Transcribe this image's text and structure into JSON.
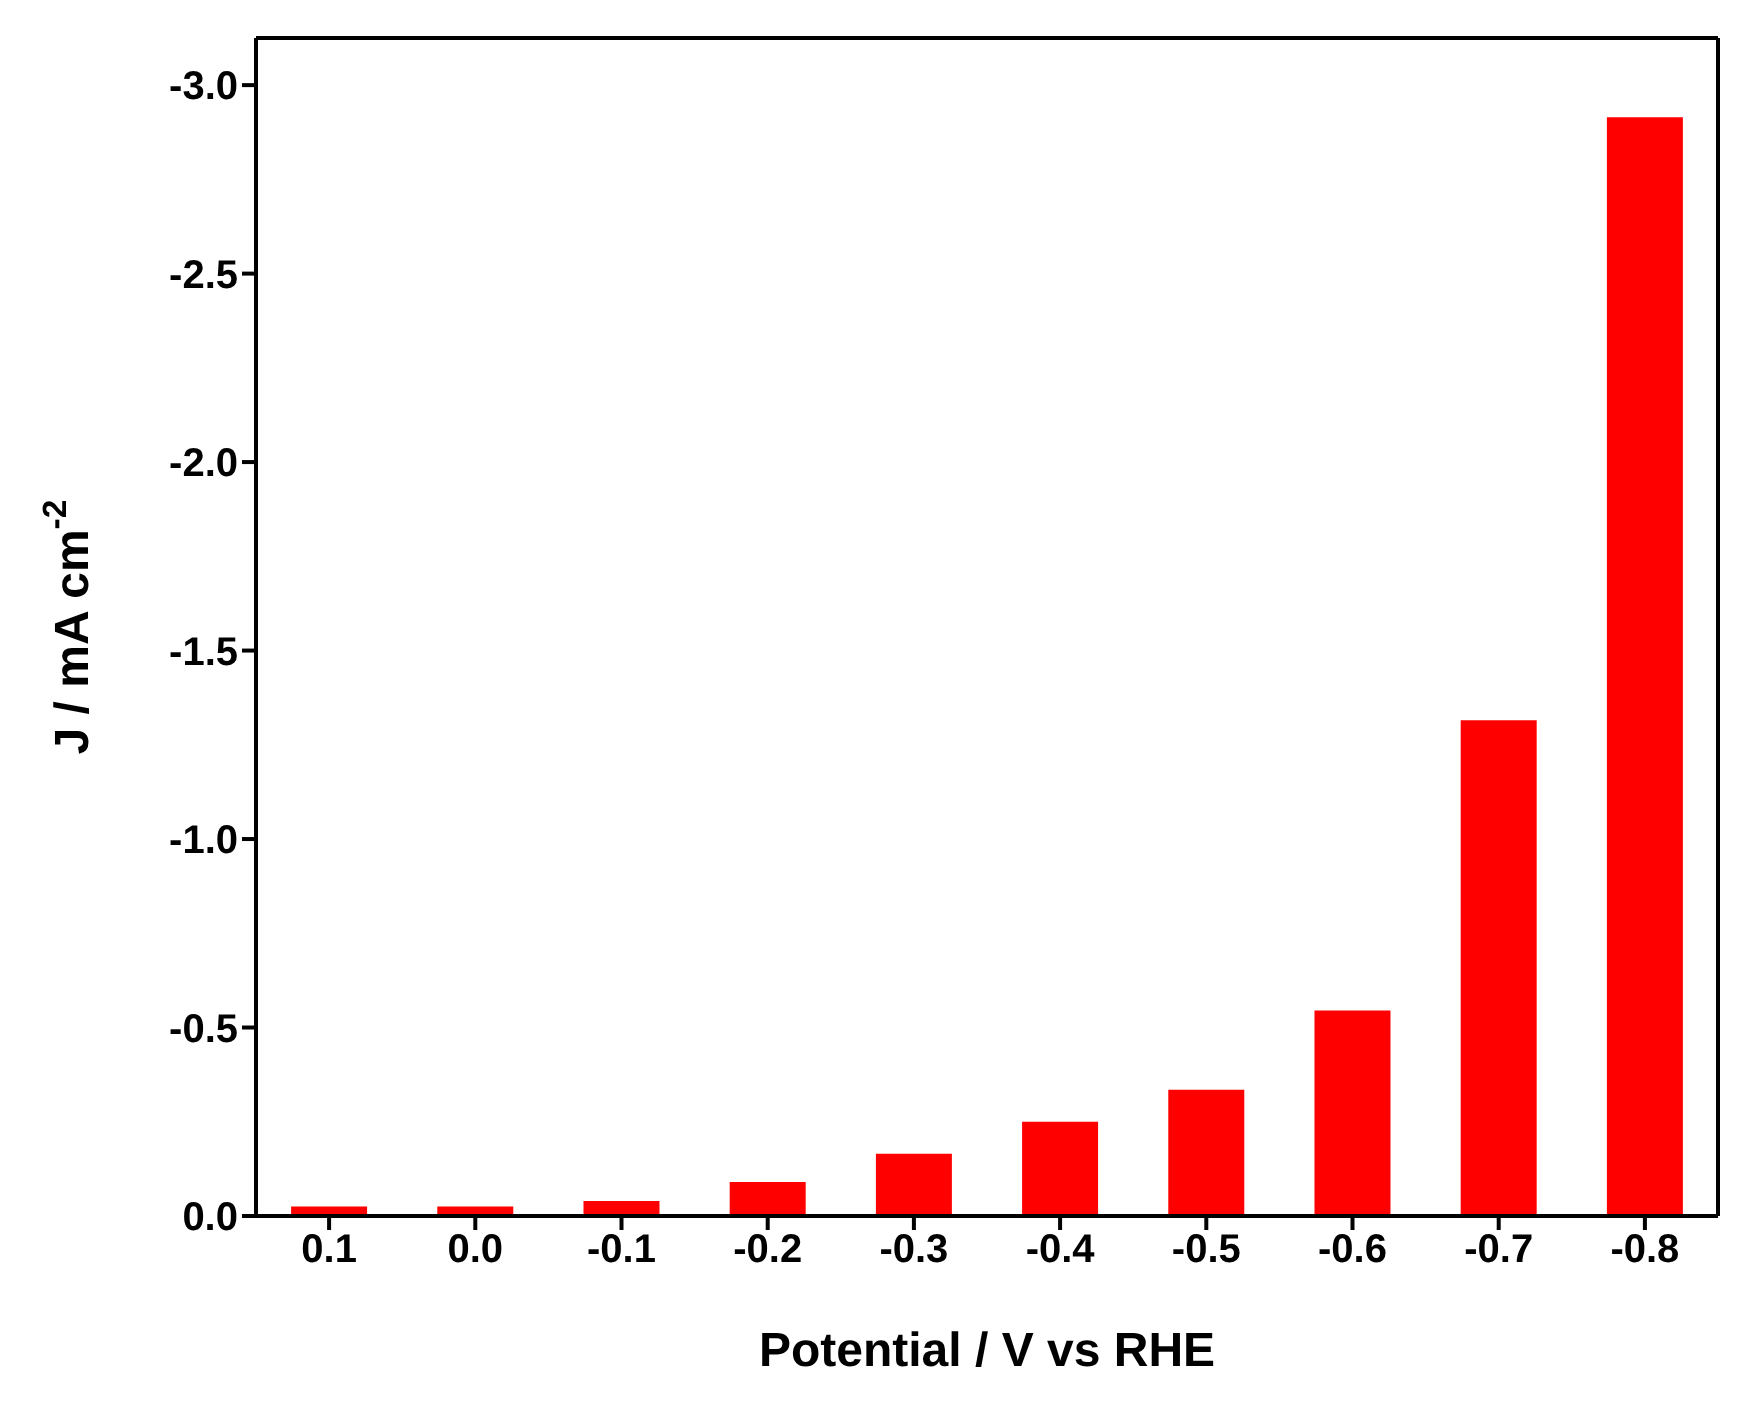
{
  "chart_data": {
    "type": "bar",
    "xlabel": "Potential / V vs RHE",
    "ylabel": "J / mA cm$^{-2}$",
    "categories": [
      "0.1",
      "0.0",
      "-0.1",
      "-0.2",
      "-0.3",
      "-0.4",
      "-0.5",
      "-0.6",
      "-0.7",
      "-0.8"
    ],
    "values": [
      -0.025,
      -0.025,
      -0.04,
      -0.09,
      -0.165,
      -0.25,
      -0.335,
      -0.545,
      -1.315,
      -2.915
    ],
    "color": "#ff0000",
    "ylim": [
      0,
      -3.125
    ],
    "yticks": [
      {
        "value": 0,
        "label": "0.0"
      },
      {
        "value": -0.5,
        "label": "-0.5"
      },
      {
        "value": -1,
        "label": "-1.0"
      },
      {
        "value": -1.5,
        "label": "-1.5"
      },
      {
        "value": -2,
        "label": "-2.0"
      },
      {
        "value": -2.5,
        "label": "-2.5"
      },
      {
        "value": -3,
        "label": "-3.0"
      }
    ],
    "grid": false
  }
}
